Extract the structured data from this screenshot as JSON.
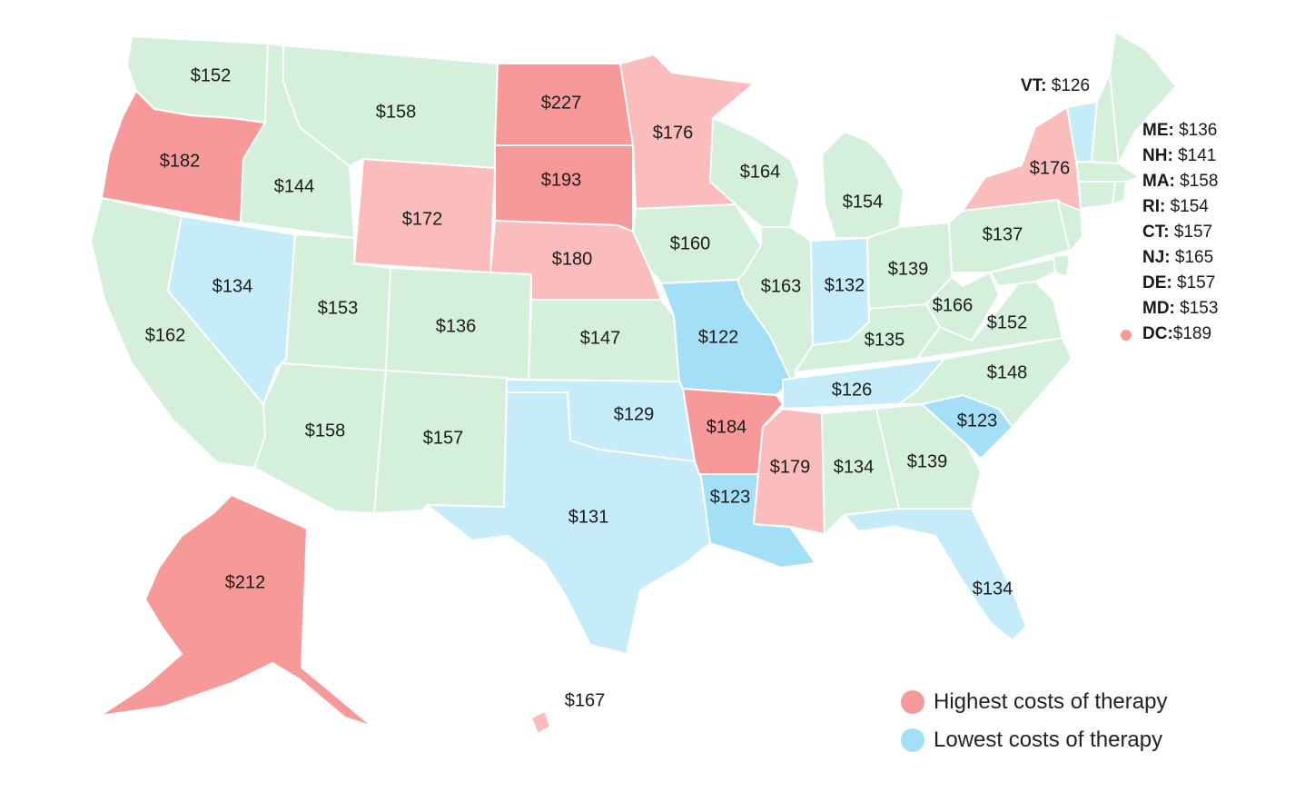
{
  "colors": {
    "average": "#d4f0db",
    "highest_strong": "#f79999",
    "highest_light": "#fbbcbc",
    "lowest_strong": "#a3e0f7",
    "lowest_light": "#c6ecf9",
    "background": "#ffffff"
  },
  "states": {
    "WA": {
      "cost": "$152",
      "tier": "average"
    },
    "OR": {
      "cost": "$182",
      "tier": "highest_strong"
    },
    "CA": {
      "cost": "$162",
      "tier": "average"
    },
    "NV": {
      "cost": "$134",
      "tier": "lowest_light"
    },
    "ID": {
      "cost": "$144",
      "tier": "average"
    },
    "MT": {
      "cost": "$158",
      "tier": "average"
    },
    "WY": {
      "cost": "$172",
      "tier": "highest_light"
    },
    "UT": {
      "cost": "$153",
      "tier": "average"
    },
    "AZ": {
      "cost": "$158",
      "tier": "average"
    },
    "CO": {
      "cost": "$136",
      "tier": "average"
    },
    "NM": {
      "cost": "$157",
      "tier": "average"
    },
    "ND": {
      "cost": "$227",
      "tier": "highest_strong"
    },
    "SD": {
      "cost": "$193",
      "tier": "highest_strong"
    },
    "NE": {
      "cost": "$180",
      "tier": "highest_light"
    },
    "KS": {
      "cost": "$147",
      "tier": "average"
    },
    "OK": {
      "cost": "$129",
      "tier": "lowest_light"
    },
    "TX": {
      "cost": "$131",
      "tier": "lowest_light"
    },
    "MN": {
      "cost": "$176",
      "tier": "highest_light"
    },
    "IA": {
      "cost": "$160",
      "tier": "average"
    },
    "MO": {
      "cost": "$122",
      "tier": "lowest_strong"
    },
    "AR": {
      "cost": "$184",
      "tier": "highest_strong"
    },
    "LA": {
      "cost": "$123",
      "tier": "lowest_strong"
    },
    "WI": {
      "cost": "$164",
      "tier": "average"
    },
    "IL": {
      "cost": "$163",
      "tier": "average"
    },
    "MI": {
      "cost": "$154",
      "tier": "average"
    },
    "IN": {
      "cost": "$132",
      "tier": "lowest_light"
    },
    "OH": {
      "cost": "$139",
      "tier": "average"
    },
    "KY": {
      "cost": "$135",
      "tier": "average"
    },
    "TN": {
      "cost": "$126",
      "tier": "lowest_light"
    },
    "MS": {
      "cost": "$179",
      "tier": "highest_light"
    },
    "AL": {
      "cost": "$134",
      "tier": "average"
    },
    "GA": {
      "cost": "$139",
      "tier": "average"
    },
    "FL": {
      "cost": "$134",
      "tier": "lowest_light"
    },
    "SC": {
      "cost": "$123",
      "tier": "lowest_strong"
    },
    "NC": {
      "cost": "$148",
      "tier": "average"
    },
    "VA": {
      "cost": "$152",
      "tier": "average"
    },
    "WV": {
      "cost": "$166",
      "tier": "average"
    },
    "PA": {
      "cost": "$137",
      "tier": "average"
    },
    "NY": {
      "cost": "$176",
      "tier": "highest_light"
    },
    "VT": {
      "cost": "$126",
      "tier": "lowest_light"
    },
    "AK": {
      "cost": "$212",
      "tier": "highest_strong"
    },
    "HI": {
      "cost": "$167",
      "tier": "highest_light"
    }
  },
  "small_states": [
    {
      "abbr": "ME:",
      "cost": "$136",
      "dot": false
    },
    {
      "abbr": "NH:",
      "cost": "$141",
      "dot": false
    },
    {
      "abbr": "MA:",
      "cost": "$158",
      "dot": false
    },
    {
      "abbr": "RI:",
      "cost": "$154",
      "dot": false
    },
    {
      "abbr": "CT:",
      "cost": "$157",
      "dot": false
    },
    {
      "abbr": "NJ:",
      "cost": "$165",
      "dot": false
    },
    {
      "abbr": "DE:",
      "cost": "$157",
      "dot": false
    },
    {
      "abbr": "MD:",
      "cost": "$153",
      "dot": false
    },
    {
      "abbr": "DC:",
      "cost": "$189",
      "dot": true
    }
  ],
  "vermont_callout": {
    "abbr": "VT:",
    "cost": "$126"
  },
  "legend": [
    {
      "label": "Highest costs of therapy",
      "color": "#f79999"
    },
    {
      "label": "Lowest costs of therapy",
      "color": "#a3e0f7"
    }
  ]
}
